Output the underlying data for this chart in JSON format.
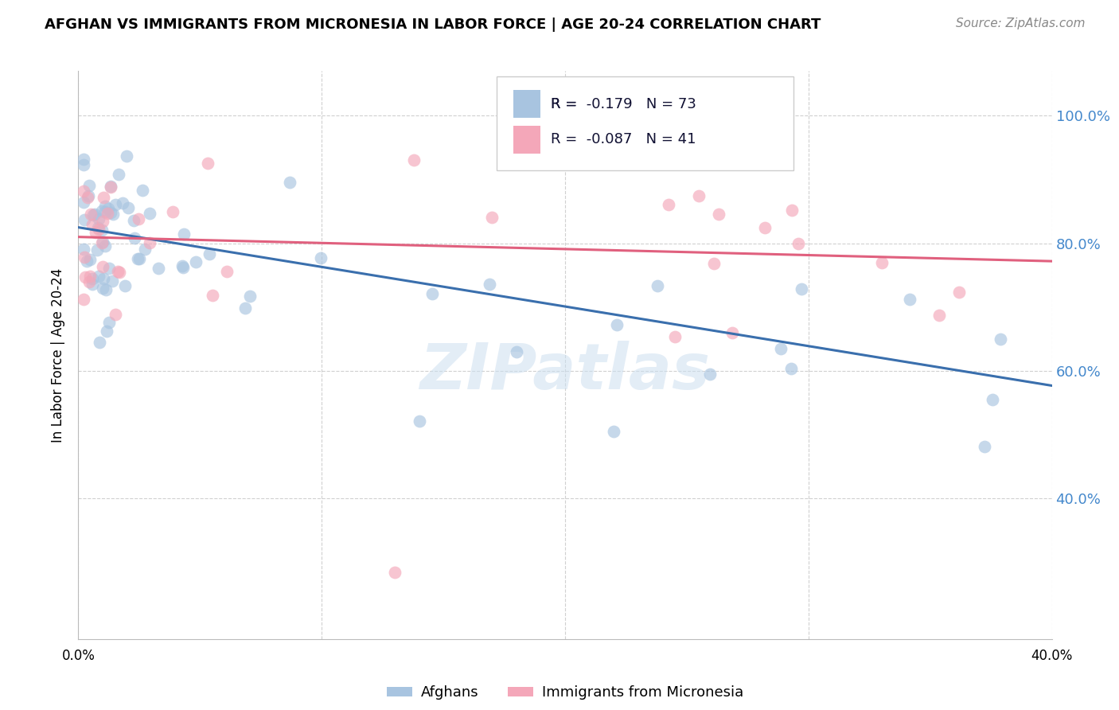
{
  "title": "AFGHAN VS IMMIGRANTS FROM MICRONESIA IN LABOR FORCE | AGE 20-24 CORRELATION CHART",
  "source": "Source: ZipAtlas.com",
  "ylabel": "In Labor Force | Age 20-24",
  "ytick_labels": [
    "100.0%",
    "80.0%",
    "60.0%",
    "40.0%"
  ],
  "ytick_positions": [
    1.0,
    0.8,
    0.6,
    0.4
  ],
  "xlim": [
    0.0,
    0.4
  ],
  "ylim": [
    0.18,
    1.07
  ],
  "R_afghan": -0.179,
  "N_afghan": 73,
  "R_micro": -0.087,
  "N_micro": 41,
  "watermark": "ZIPatlas",
  "afghan_color": "#a8c4e0",
  "micro_color": "#f4a7b9",
  "afghan_line_color": "#3a6fad",
  "micro_line_color": "#e0607e",
  "dash_line_color": "#a8c4e0",
  "background_color": "#ffffff",
  "grid_color": "#d0d0d0",
  "right_tick_color": "#4488cc",
  "title_fontsize": 13,
  "source_fontsize": 11,
  "legend_fontsize": 13,
  "marker_size": 130,
  "marker_alpha": 0.65,
  "afghan_intercept": 0.825,
  "afghan_slope": -0.62,
  "micro_intercept": 0.81,
  "micro_slope": -0.095,
  "dash_intercept": 0.825,
  "dash_slope": -0.62
}
